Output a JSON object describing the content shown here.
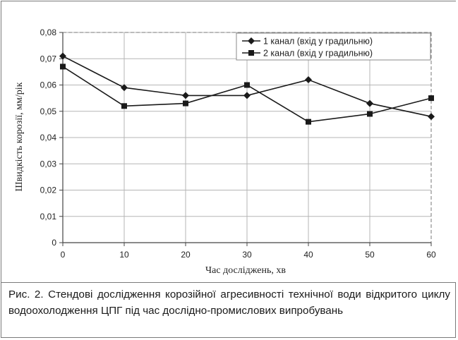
{
  "chart_data": {
    "type": "line",
    "title": "",
    "xlabel": "Час досліджень, хв",
    "ylabel": "Швидкість корозії, мм/рік",
    "x": [
      0,
      10,
      20,
      30,
      40,
      50,
      60
    ],
    "xticks": [
      "0",
      "10",
      "20",
      "30",
      "40",
      "50",
      "60"
    ],
    "yticks": [
      "0",
      "0,01",
      "0,02",
      "0,03",
      "0,04",
      "0,05",
      "0,06",
      "0,07",
      "0,08"
    ],
    "xlim": [
      0,
      60
    ],
    "ylim": [
      0,
      0.08
    ],
    "grid": true,
    "legend_position": "top-right",
    "series": [
      {
        "name": "1 канал (вхід у градильню)",
        "marker": "diamond",
        "color": "#1a1a1a",
        "values": [
          0.071,
          0.059,
          0.056,
          0.056,
          0.062,
          0.053,
          0.048
        ]
      },
      {
        "name": "2 канал (вхід у градильню)",
        "marker": "square",
        "color": "#1a1a1a",
        "values": [
          0.067,
          0.052,
          0.053,
          0.06,
          0.046,
          0.049,
          0.055
        ]
      }
    ]
  },
  "caption": "Рис. 2. Стендові дослідження корозійної агресивності технічної води відкритого циклу водоохолодження ЦПГ під час дослідно-промислових випробувань"
}
